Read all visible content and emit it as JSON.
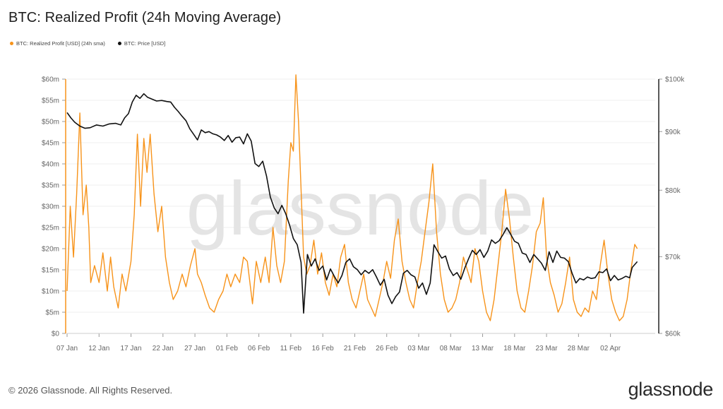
{
  "title": "BTC: Realized Profit (24h Moving Average)",
  "legend": {
    "series1": "BTC: Realized Profit [USD] (24h sma)",
    "series2": "BTC: Price [USD]"
  },
  "watermark": "glassnode",
  "footer": {
    "copyright": "© 2026 Glassnode. All Rights Reserved.",
    "logo": "glassnode"
  },
  "colors": {
    "profit": "#f7931a",
    "price": "#111111",
    "grid": "#eeeeee",
    "axis": "#999999"
  },
  "chart_data": {
    "type": "line",
    "x_ticks": [
      "07 Jan",
      "12 Jan",
      "17 Jan",
      "22 Jan",
      "27 Jan",
      "01 Feb",
      "06 Feb",
      "11 Feb",
      "16 Feb",
      "21 Feb",
      "26 Feb",
      "03 Mar",
      "08 Mar",
      "13 Mar",
      "18 Mar",
      "23 Mar",
      "28 Mar",
      "02 Apr"
    ],
    "x_range_days": [
      0,
      92
    ],
    "y_left": {
      "ticks": [
        0,
        5,
        10,
        15,
        20,
        25,
        30,
        35,
        40,
        45,
        50,
        55,
        60
      ],
      "tick_labels": [
        "$0",
        "$5m",
        "$10m",
        "$15m",
        "$20m",
        "$25m",
        "$30m",
        "$35m",
        "$40m",
        "$45m",
        "$50m",
        "$55m",
        "$60m"
      ],
      "range": [
        0,
        60
      ],
      "unit": "million USD"
    },
    "y_right": {
      "ticks": [
        60000,
        70000,
        80000,
        90000,
        100000
      ],
      "tick_labels": [
        "$60k",
        "$70k",
        "$80k",
        "$90k",
        "$100k"
      ],
      "range": [
        60000,
        100000
      ],
      "scale": "log"
    },
    "grid": true,
    "legend_position": "top-left",
    "series": [
      {
        "name": "BTC: Realized Profit [USD] (24h sma)",
        "axis": "left",
        "points": [
          [
            0,
            10
          ],
          [
            0.5,
            30
          ],
          [
            1,
            18
          ],
          [
            1.5,
            33
          ],
          [
            2,
            52
          ],
          [
            2.5,
            28
          ],
          [
            3,
            35
          ],
          [
            3.4,
            25
          ],
          [
            3.7,
            12
          ],
          [
            4.3,
            16
          ],
          [
            5,
            12
          ],
          [
            5.6,
            19
          ],
          [
            6.3,
            10
          ],
          [
            6.8,
            18
          ],
          [
            7.3,
            11
          ],
          [
            8,
            6
          ],
          [
            8.6,
            14
          ],
          [
            9.2,
            10
          ],
          [
            10,
            17
          ],
          [
            10.5,
            28
          ],
          [
            11,
            47
          ],
          [
            11.5,
            30
          ],
          [
            12,
            46
          ],
          [
            12.5,
            38
          ],
          [
            13,
            47
          ],
          [
            13.6,
            33
          ],
          [
            14.2,
            24
          ],
          [
            14.8,
            30
          ],
          [
            15.4,
            18
          ],
          [
            16,
            12
          ],
          [
            16.6,
            8
          ],
          [
            17.3,
            10
          ],
          [
            18,
            14
          ],
          [
            18.6,
            11
          ],
          [
            19.3,
            16
          ],
          [
            20,
            20
          ],
          [
            20.4,
            14
          ],
          [
            21,
            12
          ],
          [
            21.6,
            9
          ],
          [
            22.3,
            6
          ],
          [
            23,
            5
          ],
          [
            23.7,
            8
          ],
          [
            24.4,
            10
          ],
          [
            25,
            14
          ],
          [
            25.6,
            11
          ],
          [
            26.3,
            14
          ],
          [
            27,
            12
          ],
          [
            27.6,
            18
          ],
          [
            28.2,
            17
          ],
          [
            29,
            7
          ],
          [
            29.6,
            17
          ],
          [
            30.3,
            12
          ],
          [
            31,
            18
          ],
          [
            31.6,
            12
          ],
          [
            32.2,
            25
          ],
          [
            32.8,
            16
          ],
          [
            33.4,
            12
          ],
          [
            34,
            17
          ],
          [
            34.6,
            36
          ],
          [
            35,
            45
          ],
          [
            35.4,
            43
          ],
          [
            35.8,
            61
          ],
          [
            36.2,
            50
          ],
          [
            36.6,
            34
          ],
          [
            37,
            18
          ],
          [
            37.5,
            14
          ],
          [
            38,
            16
          ],
          [
            38.6,
            22
          ],
          [
            39.2,
            14
          ],
          [
            39.8,
            19
          ],
          [
            40.4,
            12
          ],
          [
            41,
            9
          ],
          [
            41.6,
            14
          ],
          [
            42.2,
            11
          ],
          [
            42.8,
            18
          ],
          [
            43.4,
            21
          ],
          [
            44,
            12
          ],
          [
            44.6,
            8
          ],
          [
            45.2,
            6
          ],
          [
            45.8,
            10
          ],
          [
            46.4,
            14
          ],
          [
            47,
            8
          ],
          [
            47.6,
            6
          ],
          [
            48.2,
            4
          ],
          [
            48.8,
            8
          ],
          [
            49.4,
            12
          ],
          [
            50,
            17
          ],
          [
            50.6,
            13
          ],
          [
            51.2,
            22
          ],
          [
            51.8,
            27
          ],
          [
            52.4,
            17
          ],
          [
            53,
            12
          ],
          [
            53.6,
            8
          ],
          [
            54.2,
            6
          ],
          [
            54.8,
            12
          ],
          [
            55.4,
            17
          ],
          [
            56,
            24
          ],
          [
            56.6,
            31
          ],
          [
            57.2,
            40
          ],
          [
            57.8,
            24
          ],
          [
            58.4,
            14
          ],
          [
            59,
            8
          ],
          [
            59.6,
            5
          ],
          [
            60.2,
            6
          ],
          [
            60.8,
            8
          ],
          [
            61.4,
            12
          ],
          [
            62,
            18
          ],
          [
            62.6,
            15
          ],
          [
            63.2,
            12
          ],
          [
            63.8,
            20
          ],
          [
            64.4,
            17
          ],
          [
            65,
            10
          ],
          [
            65.6,
            5
          ],
          [
            66.2,
            3
          ],
          [
            66.8,
            8
          ],
          [
            67.4,
            16
          ],
          [
            68,
            24
          ],
          [
            68.6,
            34
          ],
          [
            69.2,
            27
          ],
          [
            69.8,
            18
          ],
          [
            70.4,
            10
          ],
          [
            71,
            6
          ],
          [
            71.6,
            5
          ],
          [
            72.2,
            10
          ],
          [
            72.8,
            16
          ],
          [
            73.4,
            24
          ],
          [
            74,
            26
          ],
          [
            74.5,
            32
          ],
          [
            75,
            18
          ],
          [
            75.6,
            12
          ],
          [
            76.2,
            9
          ],
          [
            76.8,
            5
          ],
          [
            77.4,
            7
          ],
          [
            78,
            12
          ],
          [
            78.6,
            18
          ],
          [
            79.2,
            8
          ],
          [
            79.8,
            5
          ],
          [
            80.4,
            4
          ],
          [
            81,
            6
          ],
          [
            81.6,
            5
          ],
          [
            82.2,
            10
          ],
          [
            82.8,
            8
          ],
          [
            83.4,
            16
          ],
          [
            84,
            22
          ],
          [
            84.6,
            14
          ],
          [
            85.2,
            8
          ],
          [
            85.8,
            5
          ],
          [
            86.4,
            3
          ],
          [
            87,
            4
          ],
          [
            87.6,
            8
          ],
          [
            88.2,
            15
          ],
          [
            88.8,
            21
          ],
          [
            89.2,
            20
          ]
        ]
      },
      {
        "name": "BTC: Price [USD]",
        "axis": "right",
        "points": [
          [
            0,
            93500
          ],
          [
            0.6,
            92500
          ],
          [
            1.2,
            91700
          ],
          [
            2,
            91000
          ],
          [
            2.8,
            90600
          ],
          [
            3.6,
            90700
          ],
          [
            4.6,
            91200
          ],
          [
            5.6,
            91000
          ],
          [
            6.6,
            91400
          ],
          [
            7.6,
            91500
          ],
          [
            8.4,
            91200
          ],
          [
            9,
            92500
          ],
          [
            9.6,
            93300
          ],
          [
            10.2,
            95500
          ],
          [
            10.8,
            96800
          ],
          [
            11.4,
            96200
          ],
          [
            12,
            97100
          ],
          [
            12.6,
            96400
          ],
          [
            13.2,
            96100
          ],
          [
            14,
            95700
          ],
          [
            14.8,
            95800
          ],
          [
            15.6,
            95600
          ],
          [
            16.2,
            95500
          ],
          [
            16.8,
            94500
          ],
          [
            17.4,
            93700
          ],
          [
            18,
            92800
          ],
          [
            18.6,
            92000
          ],
          [
            19.2,
            90500
          ],
          [
            19.8,
            89500
          ],
          [
            20.4,
            88500
          ],
          [
            21,
            90300
          ],
          [
            21.6,
            89800
          ],
          [
            22.2,
            90000
          ],
          [
            22.8,
            89600
          ],
          [
            23.4,
            89400
          ],
          [
            24,
            89000
          ],
          [
            24.6,
            88400
          ],
          [
            25.2,
            89300
          ],
          [
            25.8,
            88100
          ],
          [
            26.4,
            88900
          ],
          [
            27,
            89000
          ],
          [
            27.6,
            87800
          ],
          [
            28.2,
            89600
          ],
          [
            28.8,
            88300
          ],
          [
            29.4,
            84400
          ],
          [
            30,
            83900
          ],
          [
            30.6,
            84800
          ],
          [
            31.2,
            82300
          ],
          [
            31.8,
            78900
          ],
          [
            32.4,
            77200
          ],
          [
            33,
            76300
          ],
          [
            33.6,
            77600
          ],
          [
            34.2,
            76300
          ],
          [
            34.8,
            74600
          ],
          [
            35.4,
            72600
          ],
          [
            36,
            71700
          ],
          [
            36.6,
            69200
          ],
          [
            37,
            62500
          ],
          [
            37.6,
            70300
          ],
          [
            38.2,
            68700
          ],
          [
            38.8,
            69700
          ],
          [
            39.4,
            68100
          ],
          [
            40,
            68700
          ],
          [
            40.6,
            66800
          ],
          [
            41.2,
            68300
          ],
          [
            41.8,
            67300
          ],
          [
            42.4,
            66400
          ],
          [
            43,
            67400
          ],
          [
            43.6,
            69200
          ],
          [
            44.2,
            69700
          ],
          [
            44.8,
            68600
          ],
          [
            45.4,
            68200
          ],
          [
            46,
            67500
          ],
          [
            46.6,
            68100
          ],
          [
            47.2,
            67700
          ],
          [
            47.8,
            68200
          ],
          [
            48.4,
            67200
          ],
          [
            49,
            66100
          ],
          [
            49.6,
            66900
          ],
          [
            50.2,
            64800
          ],
          [
            50.8,
            63700
          ],
          [
            51.4,
            64600
          ],
          [
            52,
            65200
          ],
          [
            52.6,
            67700
          ],
          [
            53.2,
            68100
          ],
          [
            53.8,
            67500
          ],
          [
            54.4,
            67200
          ],
          [
            55,
            65700
          ],
          [
            55.6,
            66400
          ],
          [
            56.2,
            64900
          ],
          [
            56.8,
            66400
          ],
          [
            57.4,
            71700
          ],
          [
            58,
            70700
          ],
          [
            58.6,
            69800
          ],
          [
            59.2,
            70100
          ],
          [
            59.8,
            68300
          ],
          [
            60.4,
            67400
          ],
          [
            61,
            67800
          ],
          [
            61.6,
            66900
          ],
          [
            62.2,
            68400
          ],
          [
            62.8,
            69700
          ],
          [
            63.4,
            70900
          ],
          [
            64,
            70300
          ],
          [
            64.6,
            71000
          ],
          [
            65.2,
            69900
          ],
          [
            65.8,
            70800
          ],
          [
            66.4,
            72400
          ],
          [
            67,
            71900
          ],
          [
            67.6,
            72300
          ],
          [
            68.2,
            73200
          ],
          [
            68.8,
            74200
          ],
          [
            69.4,
            73200
          ],
          [
            70,
            72200
          ],
          [
            70.6,
            71900
          ],
          [
            71.2,
            70500
          ],
          [
            71.8,
            70300
          ],
          [
            72.4,
            69200
          ],
          [
            73,
            70300
          ],
          [
            73.6,
            69700
          ],
          [
            74.2,
            69100
          ],
          [
            74.8,
            68100
          ],
          [
            75.4,
            70700
          ],
          [
            76,
            69200
          ],
          [
            76.6,
            70800
          ],
          [
            77.2,
            69900
          ],
          [
            77.8,
            69800
          ],
          [
            78.4,
            69300
          ],
          [
            79,
            67700
          ],
          [
            79.6,
            66400
          ],
          [
            80.2,
            67000
          ],
          [
            80.8,
            66800
          ],
          [
            81.4,
            67200
          ],
          [
            82,
            67000
          ],
          [
            82.6,
            67100
          ],
          [
            83.2,
            67900
          ],
          [
            83.8,
            67800
          ],
          [
            84.4,
            68300
          ],
          [
            85,
            66700
          ],
          [
            85.6,
            67400
          ],
          [
            86.2,
            66800
          ],
          [
            86.8,
            67000
          ],
          [
            87.4,
            67300
          ],
          [
            88,
            67100
          ],
          [
            88.4,
            68500
          ],
          [
            88.8,
            68900
          ],
          [
            89.2,
            69300
          ]
        ]
      }
    ]
  }
}
